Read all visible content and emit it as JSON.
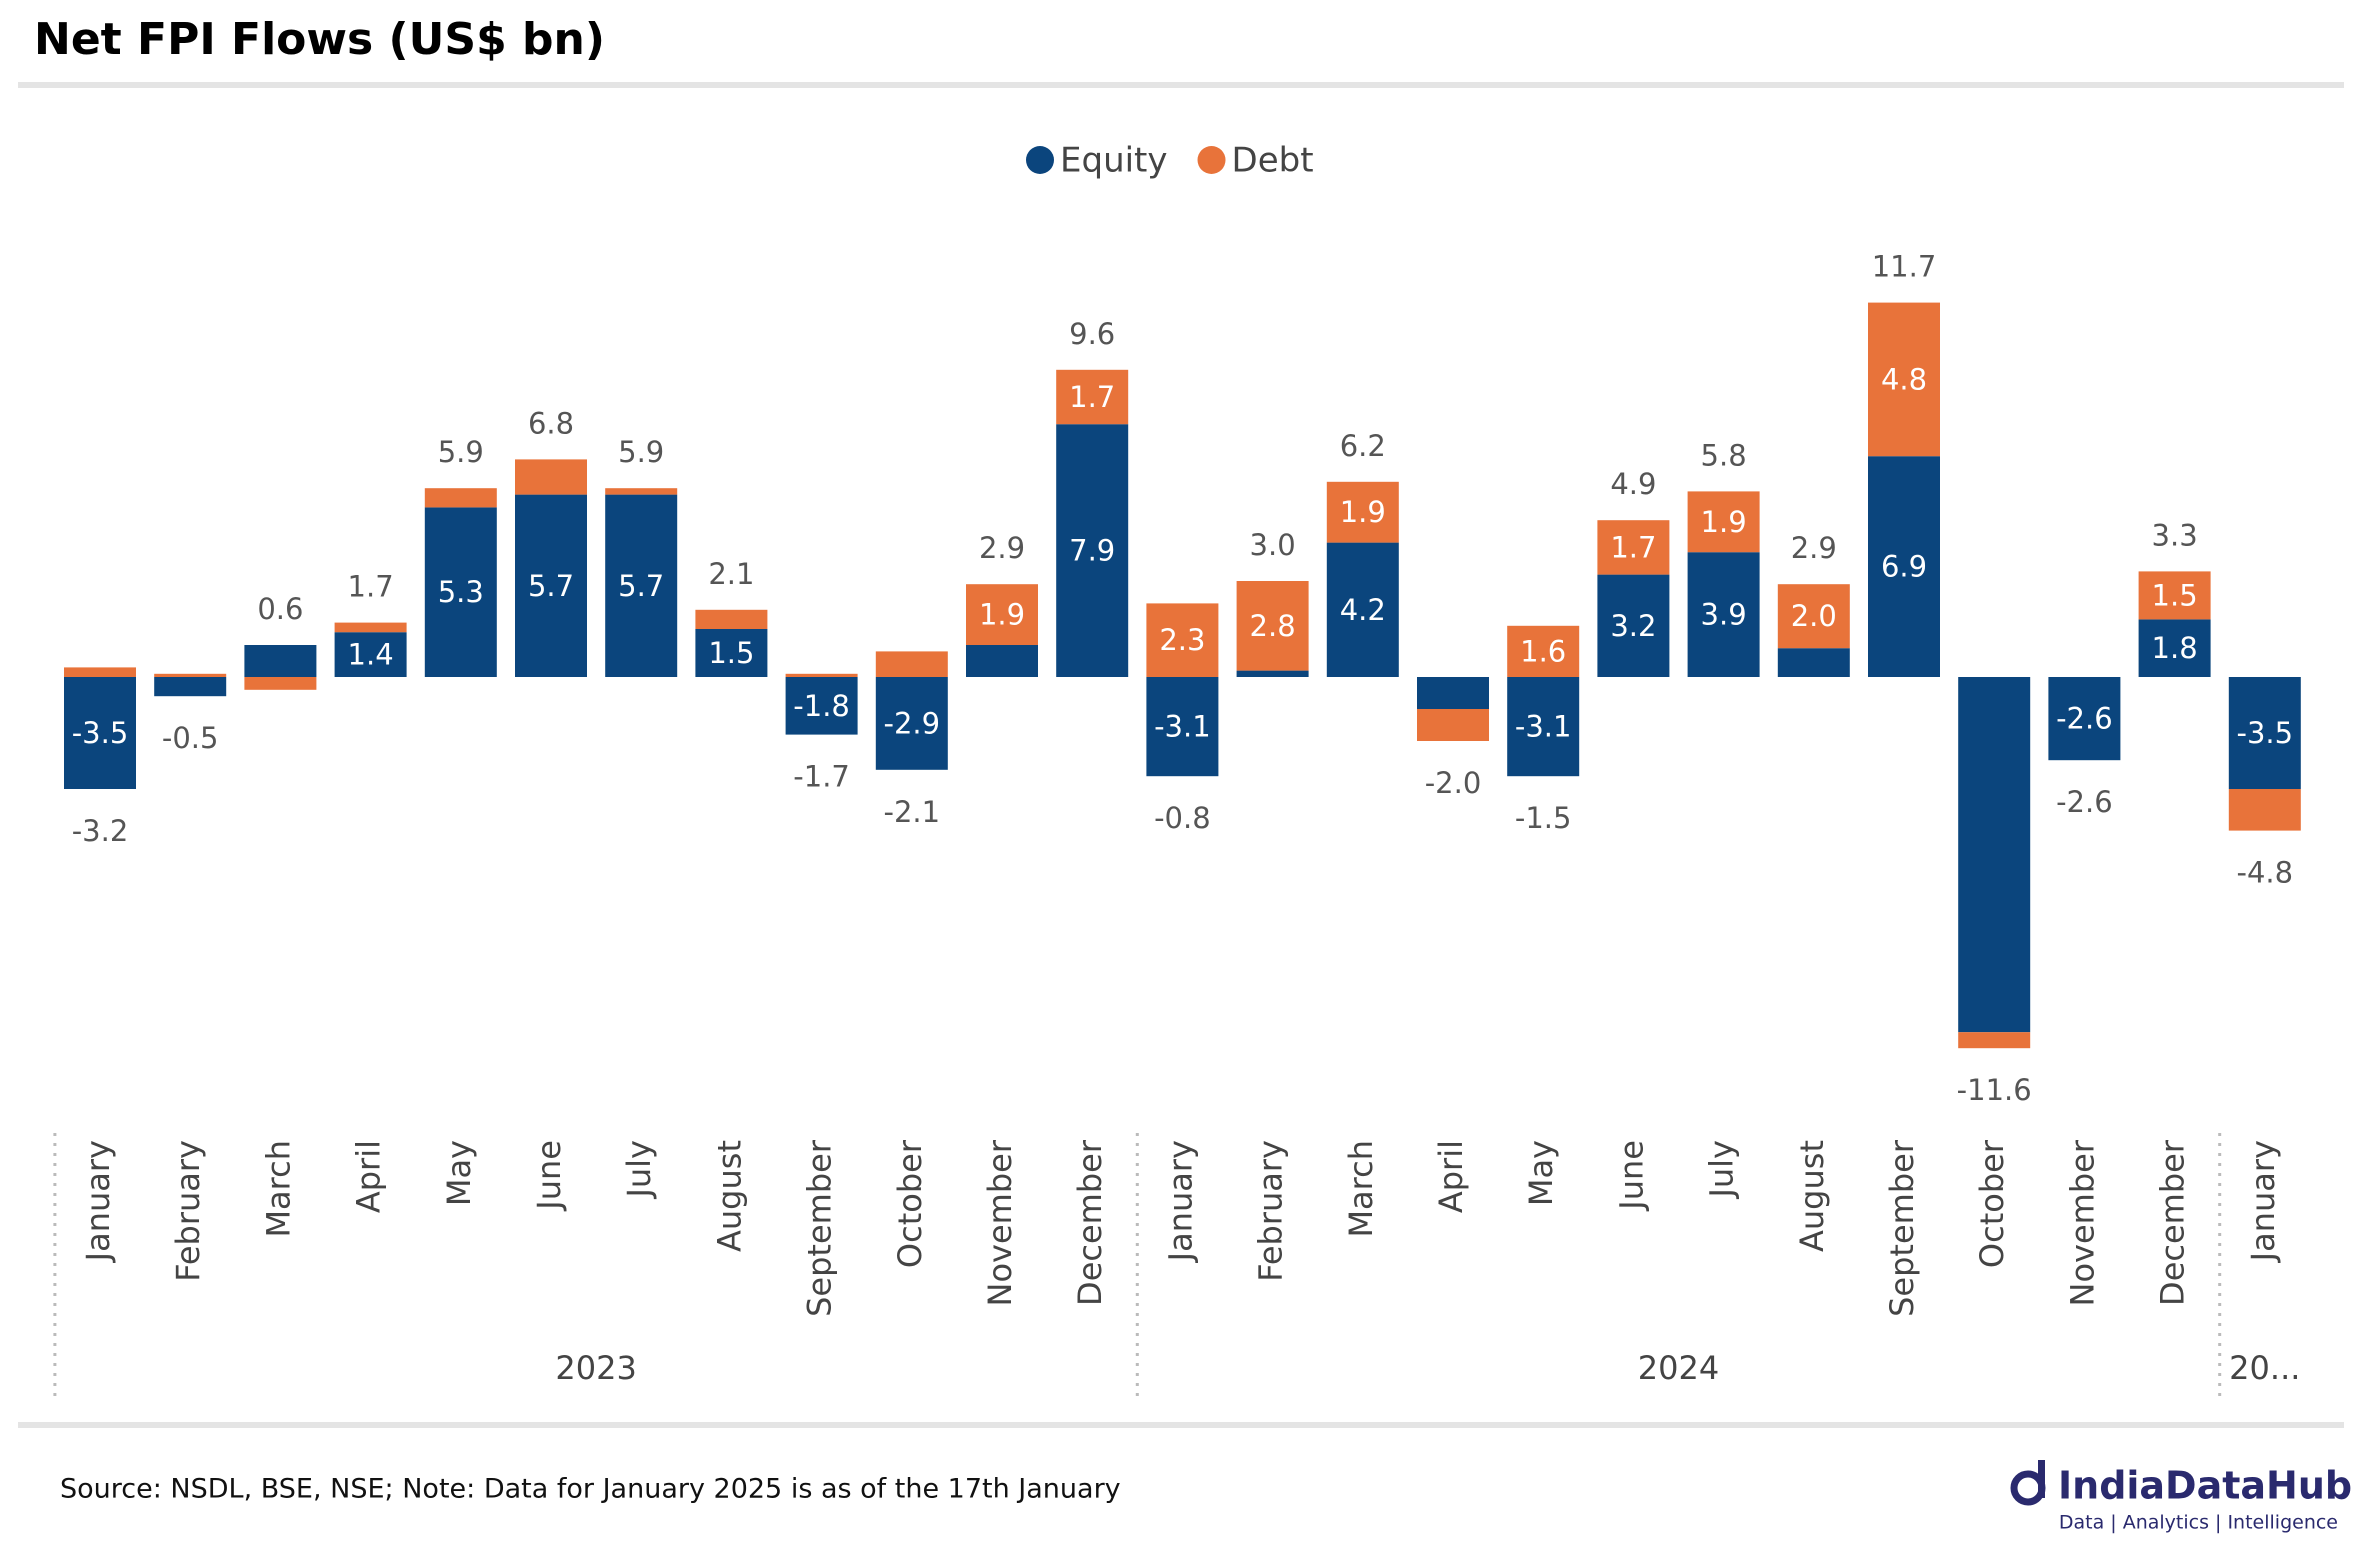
{
  "chart_data": {
    "type": "stacked-bar",
    "title": "Net FPI Flows (US$ bn)",
    "categories": [
      "January",
      "February",
      "March",
      "April",
      "May",
      "June",
      "July",
      "August",
      "September",
      "October",
      "November",
      "December",
      "January",
      "February",
      "March",
      "April",
      "May",
      "June",
      "July",
      "August",
      "September",
      "October",
      "November",
      "December",
      "January"
    ],
    "years": [
      "2023",
      "2023",
      "2023",
      "2023",
      "2023",
      "2023",
      "2023",
      "2023",
      "2023",
      "2023",
      "2023",
      "2023",
      "2024",
      "2024",
      "2024",
      "2024",
      "2024",
      "2024",
      "2024",
      "2024",
      "2024",
      "2024",
      "2024",
      "2024",
      "20..."
    ],
    "series": [
      {
        "name": "Equity",
        "color": "#0b457d",
        "values": [
          -3.5,
          -0.6,
          1.0,
          1.4,
          5.3,
          5.7,
          5.7,
          1.5,
          -1.8,
          -2.9,
          1.0,
          7.9,
          -3.1,
          0.2,
          4.2,
          -1.0,
          -3.1,
          3.2,
          3.9,
          0.9,
          6.9,
          -11.1,
          -2.6,
          1.8,
          -3.5
        ],
        "value_labels": [
          "-3.5",
          null,
          null,
          "1.4",
          "5.3",
          "5.7",
          "5.7",
          "1.5",
          "-1.8",
          "-2.9",
          null,
          "7.9",
          "-3.1",
          null,
          "4.2",
          null,
          "-3.1",
          "3.2",
          "3.9",
          null,
          "6.9",
          null,
          "-2.6",
          "1.8",
          "-3.5"
        ]
      },
      {
        "name": "Debt",
        "color": "#e8733a",
        "values": [
          0.3,
          0.1,
          -0.4,
          0.3,
          0.6,
          1.1,
          0.2,
          0.6,
          0.1,
          0.8,
          1.9,
          1.7,
          2.3,
          2.8,
          1.9,
          -1.0,
          1.6,
          1.7,
          1.9,
          2.0,
          4.8,
          -0.5,
          0.0,
          1.5,
          -1.3
        ],
        "value_labels": [
          null,
          null,
          null,
          null,
          null,
          null,
          null,
          null,
          null,
          null,
          "1.9",
          "1.7",
          "2.3",
          "2.8",
          "1.9",
          null,
          "1.6",
          "1.7",
          "1.9",
          "2.0",
          "4.8",
          null,
          null,
          "1.5",
          null
        ]
      }
    ],
    "totals": [
      -3.2,
      -0.5,
      0.6,
      1.7,
      5.9,
      6.8,
      5.9,
      2.1,
      -1.7,
      -2.1,
      2.9,
      9.6,
      -0.8,
      3.0,
      6.2,
      -2.0,
      -1.5,
      4.9,
      5.8,
      2.9,
      11.7,
      -11.6,
      -2.6,
      3.3,
      -4.8
    ],
    "total_labels": [
      "-3.2",
      "-0.5",
      "0.6",
      "1.7",
      "5.9",
      "6.8",
      "5.9",
      "2.1",
      "-1.7",
      "-2.1",
      "2.9",
      "9.6",
      "-0.8",
      "3.0",
      "6.2",
      "-2.0",
      "-1.5",
      "4.9",
      "5.8",
      "2.9",
      "11.7",
      "-11.6",
      "-2.6",
      "3.3",
      "-4.8"
    ],
    "ylim": [
      -13,
      14
    ],
    "legend": "top"
  },
  "footer": {
    "source": "Source: NSDL, BSE, NSE; Note: Data for January 2025 is as of the 17th January",
    "brand": "IndiaDataHub",
    "tagline": "Data | Analytics | Intelligence"
  }
}
